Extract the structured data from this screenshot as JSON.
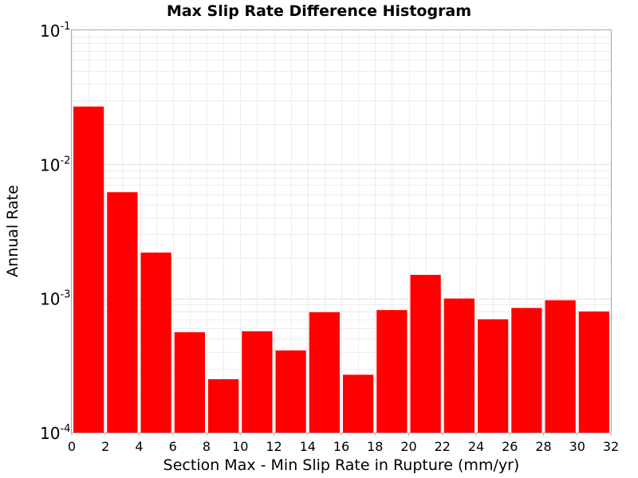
{
  "chart_data": {
    "type": "bar",
    "title": "Max Slip Rate Difference Histogram",
    "xlabel": "Section Max - Min Slip Rate in Rupture (mm/yr)",
    "ylabel": "Annual Rate",
    "x_range": [
      0,
      32
    ],
    "y_range": [
      0.0001,
      0.1
    ],
    "y_scale": "log",
    "grid": true,
    "bar_color": "#ff0000",
    "x_ticks": [
      "0",
      "2",
      "4",
      "6",
      "8",
      "10",
      "12",
      "14",
      "16",
      "18",
      "20",
      "22",
      "24",
      "26",
      "28",
      "30",
      "32"
    ],
    "y_ticks": [
      {
        "base": "10",
        "exp": "-4",
        "value": 0.0001
      },
      {
        "base": "10",
        "exp": "-3",
        "value": 0.001
      },
      {
        "base": "10",
        "exp": "-2",
        "value": 0.01
      },
      {
        "base": "10",
        "exp": "-1",
        "value": 0.1
      }
    ],
    "bins": [
      {
        "x_start": 0,
        "x_end": 2,
        "value": 0.027
      },
      {
        "x_start": 2,
        "x_end": 4,
        "value": 0.0062
      },
      {
        "x_start": 4,
        "x_end": 6,
        "value": 0.0022
      },
      {
        "x_start": 6,
        "x_end": 8,
        "value": 0.00056
      },
      {
        "x_start": 8,
        "x_end": 10,
        "value": 0.00025
      },
      {
        "x_start": 10,
        "x_end": 12,
        "value": 0.00057
      },
      {
        "x_start": 12,
        "x_end": 14,
        "value": 0.00041
      },
      {
        "x_start": 14,
        "x_end": 16,
        "value": 0.00079
      },
      {
        "x_start": 16,
        "x_end": 18,
        "value": 0.00027
      },
      {
        "x_start": 18,
        "x_end": 20,
        "value": 0.00082
      },
      {
        "x_start": 20,
        "x_end": 22,
        "value": 0.0015
      },
      {
        "x_start": 22,
        "x_end": 24,
        "value": 0.001
      },
      {
        "x_start": 24,
        "x_end": 26,
        "value": 0.0007
      },
      {
        "x_start": 26,
        "x_end": 28,
        "value": 0.00085
      },
      {
        "x_start": 28,
        "x_end": 30,
        "value": 0.00097
      },
      {
        "x_start": 30,
        "x_end": 32,
        "value": 0.0008
      }
    ]
  }
}
